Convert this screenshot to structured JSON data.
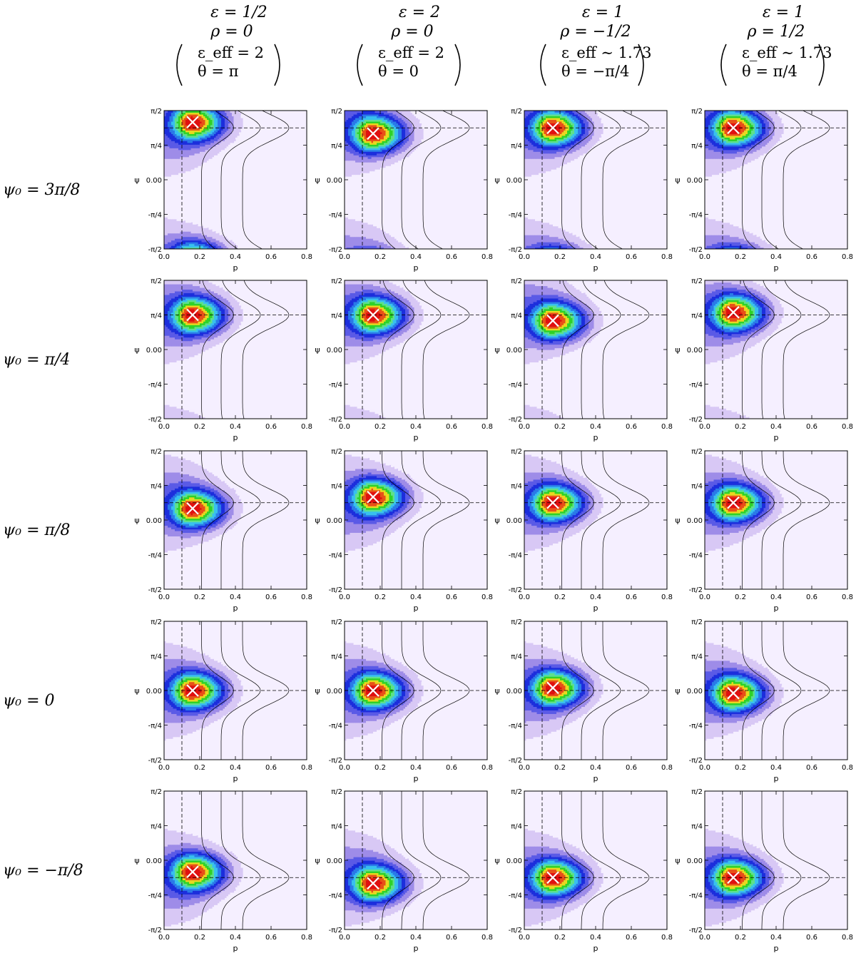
{
  "columns": [
    {
      "header_lines": [
        "ε = 1/2",
        "ρ = 0"
      ],
      "box_lines": [
        "ε_eff = 2",
        "θ = π"
      ],
      "epsilon": 0.5,
      "rho": 0,
      "epsilon_eff": 2,
      "theta": 3.14159
    },
    {
      "header_lines": [
        "ε = 2",
        "ρ = 0"
      ],
      "box_lines": [
        "ε_eff = 2",
        "θ = 0"
      ],
      "epsilon": 2,
      "rho": 0,
      "epsilon_eff": 2,
      "theta": 0
    },
    {
      "header_lines": [
        "ε = 1",
        "ρ = −1/2"
      ],
      "box_lines": [
        "ε_eff ∼ 1.73",
        "θ = −π/4"
      ],
      "epsilon": 1,
      "rho": -0.5,
      "epsilon_eff": 1.73,
      "theta": -0.7854
    },
    {
      "header_lines": [
        "ε = 1",
        "ρ = 1/2"
      ],
      "box_lines": [
        "ε_eff ∼ 1.73",
        "θ = π/4"
      ],
      "epsilon": 1,
      "rho": 0.5,
      "epsilon_eff": 1.73,
      "theta": 0.7854
    }
  ],
  "rows": [
    {
      "label": "ψ₀ = 3π/8",
      "psi0": 1.1781
    },
    {
      "label": "ψ₀ = π/4",
      "psi0": 0.7854
    },
    {
      "label": "ψ₀ = π/8",
      "psi0": 0.3927
    },
    {
      "label": "ψ₀ = 0",
      "psi0": 0
    },
    {
      "label": "ψ₀ = −π/8",
      "psi0": -0.3927
    }
  ],
  "chart_data": {
    "type": "heatmap",
    "panel_grid": {
      "rows": 5,
      "cols": 4
    },
    "xlabel": "p",
    "ylabel": "ψ",
    "xlim": [
      0,
      0.8
    ],
    "ylim": [
      -1.5708,
      1.5708
    ],
    "xticks": [
      "0.0",
      "0.2",
      "0.4",
      "0.6",
      "0.8"
    ],
    "yticks": [
      "-π/2",
      "-π/4",
      "0.00",
      "π/4",
      "π/2"
    ],
    "true_p0": 0.1,
    "marker": "white ×",
    "marker_p": 0.16,
    "peak_offsets_psi": [
      [
        0.13,
        -0.13,
        0.0,
        0.0
      ],
      [
        0.0,
        0.0,
        -0.13,
        0.06
      ],
      [
        -0.13,
        0.13,
        0.0,
        0.0
      ],
      [
        0.0,
        0.0,
        0.06,
        -0.06
      ],
      [
        0.13,
        -0.13,
        0.0,
        0.0
      ]
    ],
    "colormap": [
      "#f5efff",
      "#d8c8f5",
      "#9e8ce8",
      "#5a5ae6",
      "#1c2edc",
      "#2a7ae8",
      "#38c0ee",
      "#5ee08c",
      "#2ed228",
      "#e8d820",
      "#e85018",
      "#e01010"
    ],
    "grid": false
  }
}
